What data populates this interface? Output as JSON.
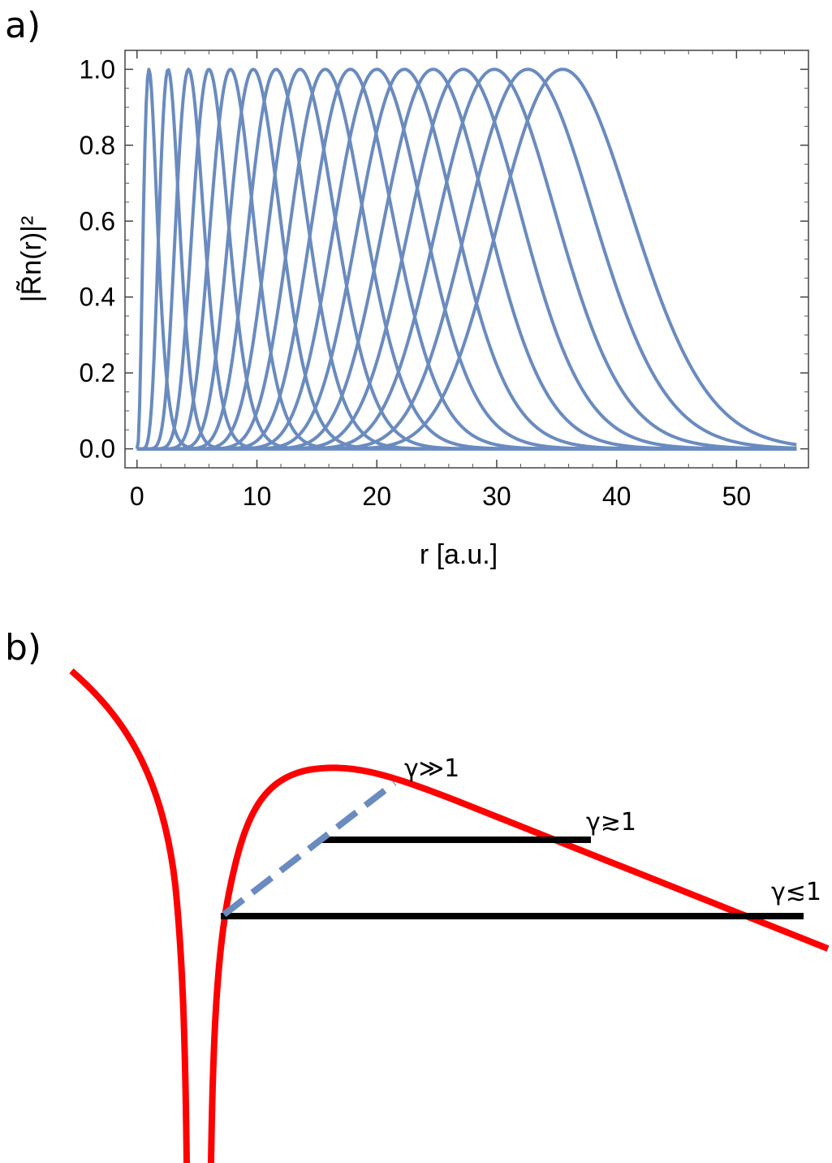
{
  "panel_a_label": "a)",
  "panel_b_label": "b)",
  "chart_data": [
    {
      "type": "line",
      "title": "",
      "xlabel": "r [a.u.]",
      "ylabel": "|R̃n(r)|²",
      "xlim": [
        -1,
        56
      ],
      "ylim": [
        -0.05,
        1.05
      ],
      "x_ticks": [
        "0",
        "10",
        "20",
        "30",
        "40",
        "50"
      ],
      "x_tick_values": [
        0,
        10,
        20,
        30,
        40,
        50
      ],
      "y_ticks": [
        "0.0",
        "0.2",
        "0.4",
        "0.6",
        "0.8",
        "1.0"
      ],
      "y_tick_values": [
        0,
        0.2,
        0.4,
        0.6,
        0.8,
        1.0
      ],
      "grid": false,
      "color": "#6a8bbf",
      "x_end": 55,
      "series": [
        {
          "peak": 1.0,
          "width": 0.55,
          "amplitude": 1.0
        },
        {
          "peak": 2.6,
          "width": 0.8,
          "amplitude": 1.0
        },
        {
          "peak": 4.3,
          "width": 1.1,
          "amplitude": 1.0
        },
        {
          "peak": 6.0,
          "width": 1.4,
          "amplitude": 1.0
        },
        {
          "peak": 7.8,
          "width": 1.7,
          "amplitude": 1.0
        },
        {
          "peak": 9.7,
          "width": 2.0,
          "amplitude": 1.0
        },
        {
          "peak": 11.6,
          "width": 2.3,
          "amplitude": 1.0
        },
        {
          "peak": 13.6,
          "width": 2.6,
          "amplitude": 1.0
        },
        {
          "peak": 15.7,
          "width": 2.9,
          "amplitude": 1.0
        },
        {
          "peak": 17.8,
          "width": 3.2,
          "amplitude": 1.0
        },
        {
          "peak": 20.0,
          "width": 3.5,
          "amplitude": 1.0
        },
        {
          "peak": 22.3,
          "width": 3.8,
          "amplitude": 1.0
        },
        {
          "peak": 24.7,
          "width": 4.1,
          "amplitude": 1.0
        },
        {
          "peak": 27.2,
          "width": 4.4,
          "amplitude": 1.0
        },
        {
          "peak": 29.8,
          "width": 4.7,
          "amplitude": 1.0
        },
        {
          "peak": 32.6,
          "width": 5.0,
          "amplitude": 1.0
        },
        {
          "peak": 35.5,
          "width": 5.3,
          "amplitude": 1.0
        }
      ]
    }
  ],
  "diagram_b": {
    "potential_color": "#ff0000",
    "tunnel_line_color": "#000000",
    "dashed_line_color": "#6a8bbf",
    "labels": {
      "gamma_much_greater": "γ≫1",
      "gamma_greater_approx": "γ≳1",
      "gamma_less_approx": "γ≲1"
    }
  }
}
